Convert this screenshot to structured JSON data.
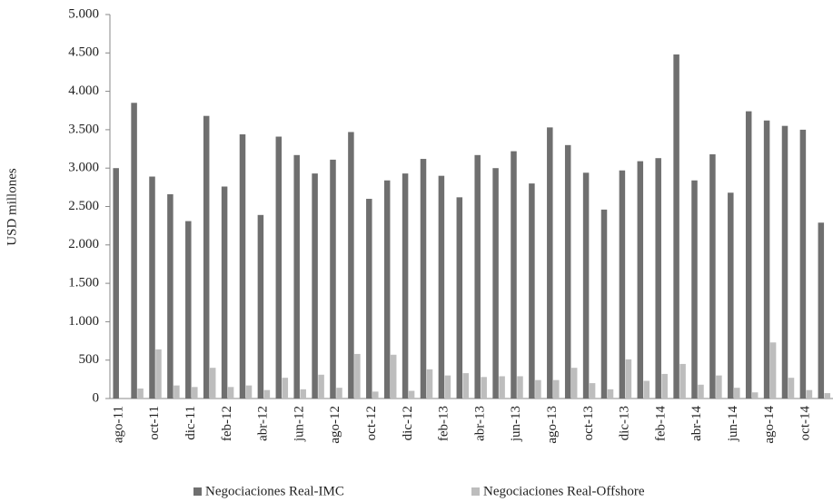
{
  "chart_data": {
    "type": "bar",
    "y_label": "USD millones",
    "categories": [
      "ago-11",
      null,
      "oct-11",
      null,
      "dic-11",
      null,
      "feb-12",
      null,
      "abr-12",
      null,
      "jun-12",
      null,
      "ago-12",
      null,
      "oct-12",
      null,
      "dic-12",
      null,
      "feb-13",
      null,
      "abr-13",
      null,
      "jun-13",
      null,
      "ago-13",
      null,
      "oct-13",
      null,
      "dic-13",
      null,
      "feb-14",
      null,
      "abr-14",
      null,
      "jun-14",
      null,
      "ago-14",
      null,
      "oct-14",
      null
    ],
    "series": [
      {
        "name": "Negociaciones Real-IMC",
        "color": "#6f6f6f",
        "values": [
          3000,
          3850,
          2890,
          2660,
          2310,
          3680,
          2760,
          3440,
          2390,
          3410,
          3170,
          2930,
          3110,
          3470,
          2600,
          2840,
          2930,
          3120,
          2900,
          2620,
          3170,
          3000,
          3220,
          2800,
          3530,
          3300,
          2940,
          2460,
          2970,
          3090,
          3130,
          4480,
          2840,
          3180,
          2680,
          3740,
          3620,
          3550,
          3500,
          2290
        ]
      },
      {
        "name": "Negociaciones Real-Offshore",
        "color": "#bdbdbd",
        "values": [
          null,
          130,
          640,
          170,
          150,
          400,
          150,
          170,
          110,
          270,
          120,
          310,
          140,
          580,
          90,
          570,
          100,
          380,
          300,
          330,
          280,
          290,
          290,
          240,
          240,
          400,
          200,
          120,
          510,
          230,
          320,
          450,
          180,
          300,
          140,
          80,
          730,
          270,
          110,
          70
        ]
      }
    ],
    "ylim": [
      0,
      5000
    ],
    "yticks": [
      0,
      500,
      {
        "value": 1000,
        "label": "1.000"
      },
      {
        "value": 1500,
        "label": "1.500"
      },
      {
        "value": 2000,
        "label": "2.000"
      },
      {
        "value": 2500,
        "label": "2.500"
      },
      {
        "value": 3000,
        "label": "3.000"
      },
      {
        "value": 3500,
        "label": "3.500"
      },
      {
        "value": 4000,
        "label": "4.000"
      },
      {
        "value": 4500,
        "label": "4.500"
      },
      {
        "value": 5000,
        "label": "5.000"
      }
    ],
    "grid": false
  }
}
